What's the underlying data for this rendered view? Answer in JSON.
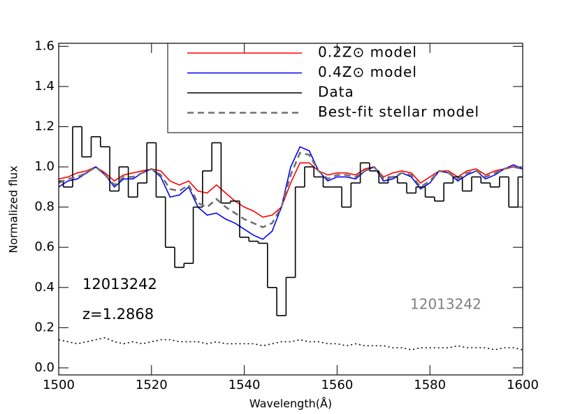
{
  "chart_data": {
    "type": "line",
    "x_label": "Wavelength(Å)",
    "y_label": "Normalized flux",
    "xlim": [
      1500,
      1600
    ],
    "ylim": [
      -0.035,
      1.615
    ],
    "xticks": [
      1500,
      1520,
      1540,
      1560,
      1580,
      1600
    ],
    "yticks": [
      {
        "value": 0,
        "label": "0.0"
      },
      0.2,
      0.4,
      0.6,
      0.8,
      {
        "value": 1,
        "label": "1.0"
      },
      1.2,
      1.4,
      1.6
    ],
    "x": [
      1500,
      1502,
      1504,
      1506,
      1508,
      1510,
      1512,
      1514,
      1516,
      1518,
      1520,
      1522,
      1524,
      1526,
      1528,
      1530,
      1532,
      1534,
      1536,
      1538,
      1540,
      1542,
      1544,
      1546,
      1548,
      1550,
      1552,
      1554,
      1556,
      1558,
      1560,
      1562,
      1564,
      1566,
      1568,
      1570,
      1572,
      1574,
      1576,
      1578,
      1580,
      1582,
      1584,
      1586,
      1588,
      1590,
      1592,
      1594,
      1596,
      1598,
      1600
    ],
    "series": [
      {
        "name": "0.2Z⊙ model",
        "color": "#ff0000",
        "style": "solid",
        "values": [
          0.94,
          0.95,
          0.97,
          0.98,
          1.0,
          0.97,
          0.93,
          0.96,
          0.97,
          0.98,
          0.99,
          0.98,
          0.93,
          0.91,
          0.93,
          0.88,
          0.87,
          0.91,
          0.87,
          0.83,
          0.8,
          0.78,
          0.75,
          0.76,
          0.8,
          0.92,
          1.02,
          1.02,
          0.98,
          0.96,
          0.97,
          0.97,
          0.96,
          0.99,
          1.0,
          0.95,
          0.97,
          0.98,
          0.97,
          0.92,
          0.95,
          0.98,
          0.98,
          0.95,
          0.98,
          0.99,
          0.96,
          0.98,
          0.99,
          1.0,
          0.99
        ]
      },
      {
        "name": "0.4Z⊙ model",
        "color": "#0000ff",
        "style": "solid",
        "values": [
          0.9,
          0.93,
          0.94,
          0.97,
          1.0,
          0.96,
          0.9,
          0.94,
          0.94,
          0.97,
          0.99,
          0.95,
          0.85,
          0.86,
          0.9,
          0.8,
          0.76,
          0.77,
          0.74,
          0.72,
          0.69,
          0.66,
          0.64,
          0.68,
          0.8,
          1.0,
          1.1,
          1.08,
          0.98,
          0.93,
          0.95,
          0.95,
          0.94,
          0.98,
          1.0,
          0.93,
          0.94,
          0.97,
          0.95,
          0.89,
          0.92,
          0.98,
          0.97,
          0.93,
          0.96,
          0.98,
          0.94,
          0.96,
          0.99,
          1.01,
          0.99
        ]
      },
      {
        "name": "Data",
        "color": "#000000",
        "style": "step",
        "values": [
          0.93,
          0.9,
          1.2,
          1.05,
          1.15,
          1.1,
          0.88,
          1.0,
          0.85,
          0.92,
          1.12,
          0.85,
          0.6,
          0.5,
          0.52,
          0.8,
          0.98,
          1.12,
          0.82,
          0.83,
          0.65,
          0.63,
          0.62,
          0.4,
          0.26,
          0.45,
          0.9,
          1.0,
          0.95,
          0.9,
          0.9,
          0.8,
          0.92,
          1.02,
          0.98,
          0.92,
          0.95,
          0.92,
          0.87,
          0.9,
          0.85,
          0.83,
          0.92,
          0.95,
          0.88,
          0.95,
          0.92,
          0.9,
          0.95,
          0.8,
          0.95
        ]
      },
      {
        "name": "Best-fit stellar model",
        "color": "#707070",
        "style": "dashed",
        "values": [
          0.92,
          0.94,
          0.95,
          0.97,
          1.0,
          0.96,
          0.91,
          0.95,
          0.95,
          0.97,
          0.99,
          0.96,
          0.89,
          0.88,
          0.91,
          0.82,
          0.8,
          0.84,
          0.8,
          0.77,
          0.74,
          0.72,
          0.7,
          0.72,
          0.8,
          0.96,
          1.07,
          1.06,
          0.98,
          0.94,
          0.96,
          0.96,
          0.95,
          0.98,
          1.0,
          0.94,
          0.95,
          0.97,
          0.96,
          0.9,
          0.93,
          0.98,
          0.97,
          0.94,
          0.97,
          0.98,
          0.95,
          0.97,
          0.99,
          1.0,
          0.99
        ]
      },
      {
        "color": "#000000",
        "style": "dotted",
        "values": [
          0.14,
          0.13,
          0.12,
          0.13,
          0.14,
          0.15,
          0.13,
          0.12,
          0.13,
          0.12,
          0.13,
          0.14,
          0.14,
          0.13,
          0.13,
          0.13,
          0.12,
          0.13,
          0.12,
          0.12,
          0.12,
          0.12,
          0.11,
          0.12,
          0.13,
          0.13,
          0.14,
          0.13,
          0.13,
          0.12,
          0.12,
          0.11,
          0.12,
          0.11,
          0.11,
          0.11,
          0.1,
          0.1,
          0.09,
          0.1,
          0.1,
          0.1,
          0.1,
          0.11,
          0.1,
          0.1,
          0.1,
          0.09,
          0.1,
          0.1,
          0.09
        ]
      }
    ],
    "annotations": [
      {
        "text": "12013242",
        "color": "#000000"
      },
      {
        "text": "z=1.2868",
        "color": "#000000"
      },
      {
        "text": "12013242",
        "color": "#808080"
      }
    ]
  }
}
